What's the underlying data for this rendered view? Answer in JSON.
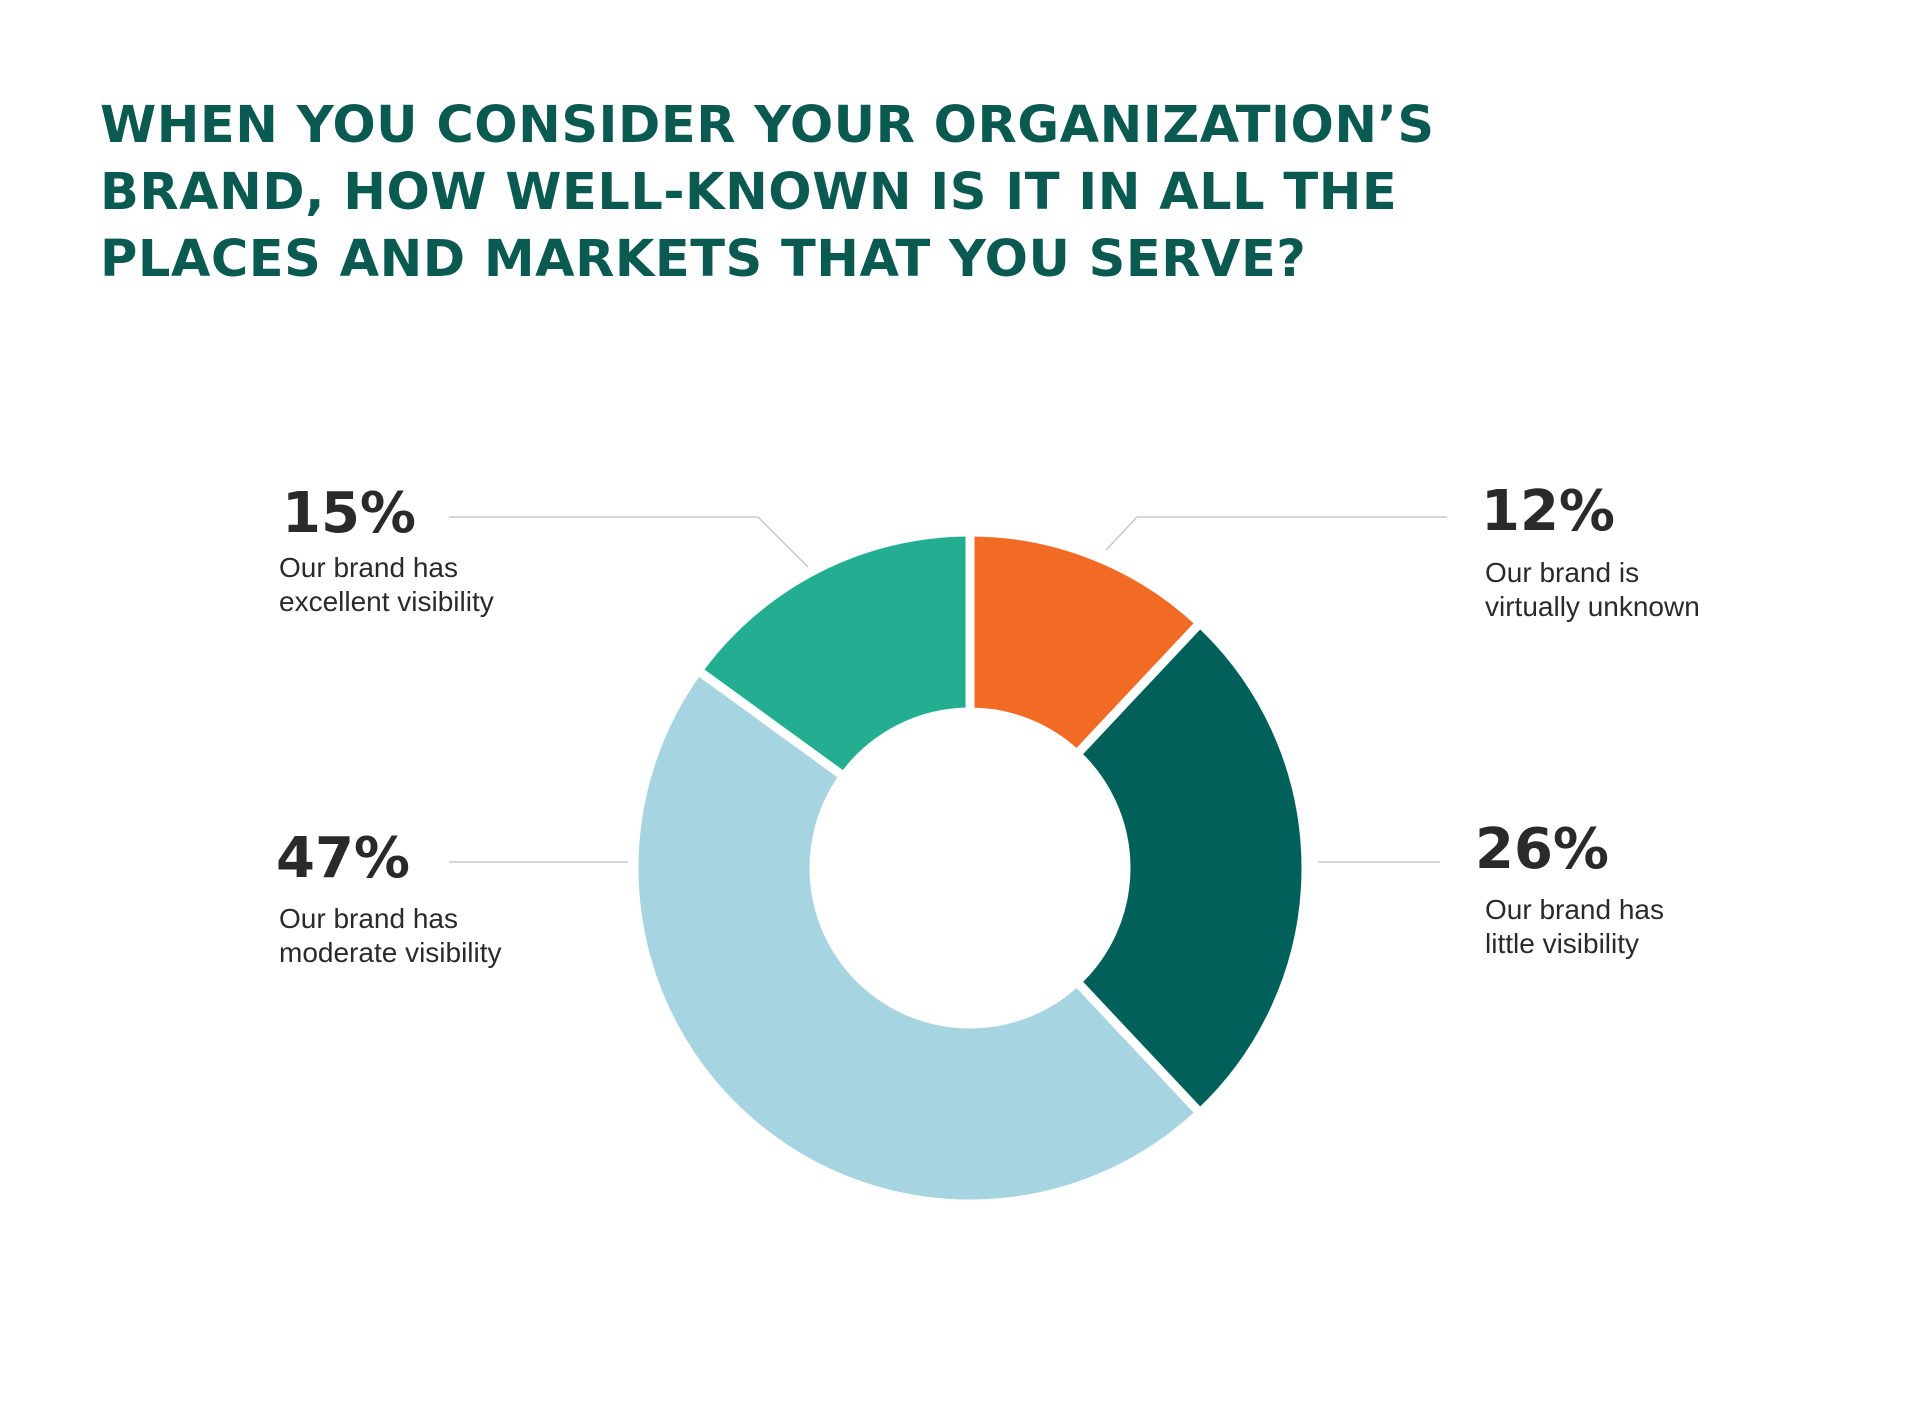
{
  "title": {
    "lines": [
      "WHEN YOU CONSIDER YOUR ORGANIZATION’S",
      "BRAND, HOW WELL-KNOWN IS IT IN ALL THE",
      "PLACES AND MARKETS THAT YOU SERVE?"
    ]
  },
  "chart_data": {
    "type": "pie",
    "variant": "donut",
    "title": "WHEN YOU CONSIDER YOUR ORGANIZATION’S BRAND, HOW WELL-KNOWN IS IT IN ALL THE PLACES AND MARKETS THAT YOU SERVE?",
    "slices": [
      {
        "label": "Our brand is virtually unknown",
        "label_lines": [
          "Our brand is",
          "virtually unknown"
        ],
        "value": 12,
        "value_label": "12%",
        "color": "#f26b24"
      },
      {
        "label": "Our brand has little visibility",
        "label_lines": [
          "Our brand has",
          "little visibility"
        ],
        "value": 26,
        "value_label": "26%",
        "color": "#02605a"
      },
      {
        "label": "Our brand has moderate visibility",
        "label_lines": [
          "Our brand has",
          "moderate visibility"
        ],
        "value": 47,
        "value_label": "47%",
        "color": "#a6d4e0"
      },
      {
        "label": "Our brand has excellent visibility",
        "label_lines": [
          "Our brand has",
          "excellent visibility"
        ],
        "value": 15,
        "value_label": "15%",
        "color": "#24ae91"
      }
    ],
    "legend": "none"
  }
}
